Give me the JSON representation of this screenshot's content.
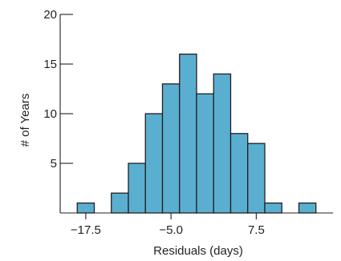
{
  "chart_data": {
    "type": "bar",
    "subtype": "histogram",
    "title": "",
    "xlabel": "Residuals (days)",
    "ylabel": "# of Years",
    "bin_width": 2.5,
    "bins": [
      {
        "start": -18.75,
        "end": -16.25,
        "count": 1
      },
      {
        "start": -16.25,
        "end": -13.75,
        "count": 0
      },
      {
        "start": -13.75,
        "end": -11.25,
        "count": 2
      },
      {
        "start": -11.25,
        "end": -8.75,
        "count": 5
      },
      {
        "start": -8.75,
        "end": -6.25,
        "count": 10
      },
      {
        "start": -6.25,
        "end": -3.75,
        "count": 13
      },
      {
        "start": -3.75,
        "end": -1.25,
        "count": 16
      },
      {
        "start": -1.25,
        "end": 1.25,
        "count": 12
      },
      {
        "start": 1.25,
        "end": 3.75,
        "count": 14
      },
      {
        "start": 3.75,
        "end": 6.25,
        "count": 8
      },
      {
        "start": 6.25,
        "end": 8.75,
        "count": 7
      },
      {
        "start": 8.75,
        "end": 11.25,
        "count": 1
      },
      {
        "start": 11.25,
        "end": 13.75,
        "count": 0
      },
      {
        "start": 13.75,
        "end": 16.25,
        "count": 1
      }
    ],
    "xlim": [
      -21.25,
      18.75
    ],
    "ylim": [
      0,
      20
    ],
    "x_ticks": [
      {
        "value": -17.5,
        "label": "−17.5"
      },
      {
        "value": -5.0,
        "label": "−5.0"
      },
      {
        "value": 7.5,
        "label": "7.5"
      }
    ],
    "y_ticks": [
      {
        "value": 5,
        "label": "5"
      },
      {
        "value": 10,
        "label": "10"
      },
      {
        "value": 15,
        "label": "15"
      },
      {
        "value": 20,
        "label": "20"
      }
    ],
    "grid": false,
    "legend": "none",
    "colors": {
      "bar_fill": "#5aafd0",
      "bar_edge": "#231f20",
      "axis": "#231f20"
    }
  }
}
